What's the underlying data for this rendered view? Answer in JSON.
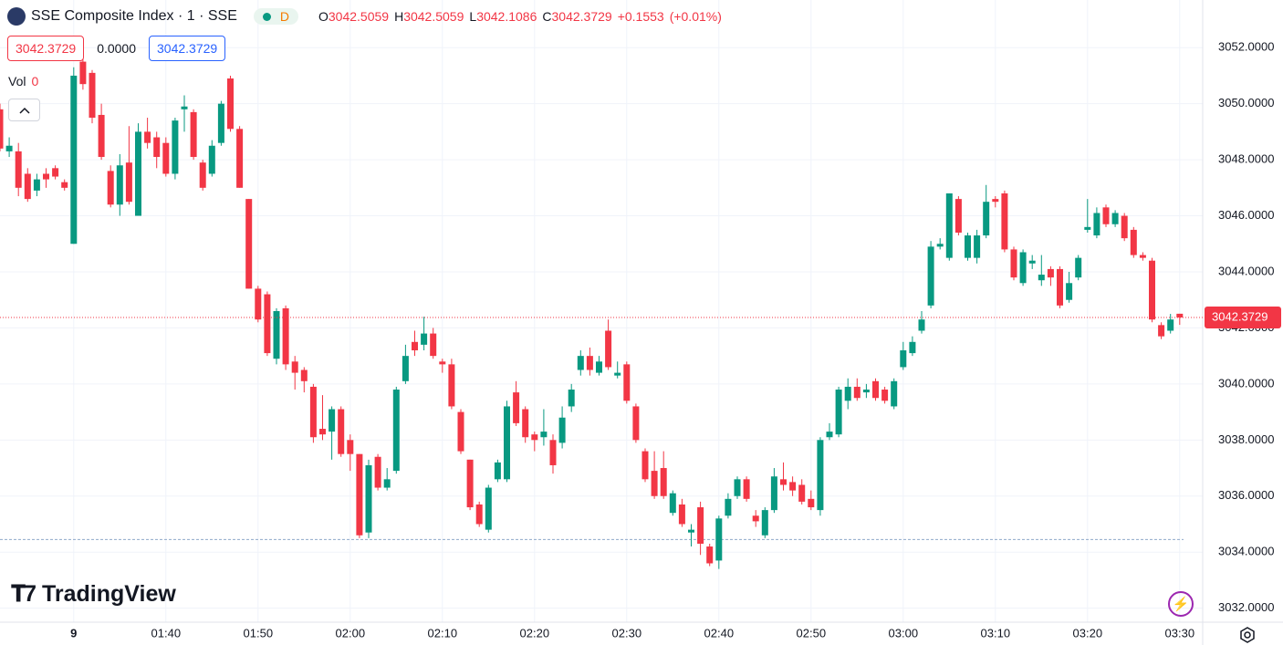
{
  "header": {
    "title": "SSE Composite Index · 1 · SSE",
    "interval_badge": "D",
    "ohlc": [
      {
        "label": "O",
        "value": "3042.5059"
      },
      {
        "label": "H",
        "value": "3042.5059"
      },
      {
        "label": "L",
        "value": "3042.1086"
      },
      {
        "label": "C",
        "value": "3042.3729"
      }
    ],
    "change": "+0.1553",
    "change_pct": "(+0.01%)",
    "bid": "3042.3729",
    "spread": "0.0000",
    "ask": "3042.3729",
    "vol_label": "Vol",
    "vol_value": "0"
  },
  "brand": "TradingView",
  "chart_data": {
    "type": "candlestick",
    "up_color": "#089981",
    "down_color": "#f23645",
    "grid": true,
    "x": [
      "01:22",
      "01:23",
      "01:24",
      "01:25",
      "01:26",
      "01:27",
      "01:28",
      "01:29",
      "01:30",
      "01:31",
      "01:32",
      "01:33",
      "01:34",
      "01:35",
      "01:36",
      "01:37",
      "01:38",
      "01:39",
      "01:40",
      "01:41",
      "01:42",
      "01:43",
      "01:44",
      "01:45",
      "01:46",
      "01:47",
      "01:48",
      "01:49",
      "01:50",
      "01:51",
      "01:52",
      "01:53",
      "01:54",
      "01:55",
      "01:56",
      "01:57",
      "01:58",
      "01:59",
      "02:00",
      "02:01",
      "02:02",
      "02:03",
      "02:04",
      "02:05",
      "02:06",
      "02:07",
      "02:08",
      "02:09",
      "02:10",
      "02:11",
      "02:12",
      "02:13",
      "02:14",
      "02:15",
      "02:16",
      "02:17",
      "02:18",
      "02:19",
      "02:20",
      "02:21",
      "02:22",
      "02:23",
      "02:24",
      "02:25",
      "02:26",
      "02:27",
      "02:28",
      "02:29",
      "02:30",
      "02:31",
      "02:32",
      "02:33",
      "02:34",
      "02:35",
      "02:36",
      "02:37",
      "02:38",
      "02:39",
      "02:40",
      "02:41",
      "02:42",
      "02:43",
      "02:44",
      "02:45",
      "02:46",
      "02:47",
      "02:48",
      "02:49",
      "02:50",
      "02:51",
      "02:52",
      "02:53",
      "02:54",
      "02:55",
      "02:56",
      "02:57",
      "02:58",
      "02:59",
      "03:00",
      "03:01",
      "03:02",
      "03:03",
      "03:04",
      "03:05",
      "03:06",
      "03:07",
      "03:08",
      "03:09",
      "03:10",
      "03:11",
      "03:12",
      "03:13",
      "03:14",
      "03:15",
      "03:16",
      "03:17",
      "03:18",
      "03:19",
      "03:20",
      "03:21",
      "03:22",
      "03:23",
      "03:24",
      "03:25",
      "03:26",
      "03:27",
      "03:28",
      "03:29",
      "03:30"
    ],
    "open": [
      3049.8,
      3048.3,
      3048.3,
      3047.5,
      3046.9,
      3047.5,
      3047.7,
      3047.2,
      3045.0,
      3051.5,
      3051.1,
      3049.6,
      3047.6,
      3046.4,
      3047.9,
      3046.0,
      3049.0,
      3048.8,
      3048.6,
      3047.5,
      3049.8,
      3049.7,
      3047.9,
      3047.5,
      3048.6,
      3050.9,
      3049.1,
      3046.6,
      3043.4,
      3043.2,
      3040.9,
      3042.7,
      3040.8,
      3040.5,
      3039.9,
      3038.4,
      3038.3,
      3039.1,
      3038.0,
      3037.5,
      3034.7,
      3037.4,
      3036.3,
      3036.9,
      3040.1,
      3041.5,
      3041.4,
      3041.8,
      3040.8,
      3040.7,
      3039.0,
      3037.3,
      3035.7,
      3034.8,
      3036.6,
      3036.6,
      3039.7,
      3039.1,
      3038.2,
      3038.1,
      3038.0,
      3037.9,
      3039.2,
      3040.5,
      3041.0,
      3040.4,
      3041.9,
      3040.3,
      3040.7,
      3039.2,
      3037.6,
      3036.9,
      3037.0,
      3035.4,
      3035.7,
      3034.7,
      3035.6,
      3034.2,
      3033.7,
      3035.3,
      3036.0,
      3036.6,
      3035.3,
      3034.6,
      3035.5,
      3036.6,
      3036.5,
      3036.4,
      3035.9,
      3035.5,
      3038.1,
      3038.2,
      3039.4,
      3039.9,
      3039.7,
      3040.1,
      3039.8,
      3039.2,
      3040.6,
      3041.1,
      3041.9,
      3042.8,
      3044.9,
      3044.5,
      3046.6,
      3044.5,
      3044.5,
      3045.3,
      3046.6,
      3046.8,
      3044.8,
      3043.6,
      3044.3,
      3043.7,
      3044.1,
      3044.1,
      3043.0,
      3043.8,
      3045.5,
      3045.3,
      3046.3,
      3045.7,
      3046.0,
      3045.5,
      3044.6,
      3044.4,
      3042.1,
      3041.9,
      3042.5059
    ],
    "high": [
      3050.0,
      3048.8,
      3048.6,
      3047.7,
      3047.5,
      3047.7,
      3047.8,
      3047.3,
      3051.3,
      3051.8,
      3051.2,
      3050.0,
      3047.8,
      3048.2,
      3049.2,
      3049.3,
      3049.5,
      3049.0,
      3048.8,
      3049.5,
      3050.3,
      3049.8,
      3048.0,
      3048.7,
      3050.1,
      3051.0,
      3049.2,
      3046.6,
      3043.5,
      3043.3,
      3042.7,
      3042.8,
      3041.0,
      3040.6,
      3040.0,
      3039.6,
      3039.2,
      3039.2,
      3038.2,
      3037.5,
      3037.3,
      3037.5,
      3037.0,
      3039.9,
      3041.4,
      3041.9,
      3042.4,
      3042.0,
      3040.9,
      3040.9,
      3039.1,
      3037.3,
      3035.8,
      3036.4,
      3037.3,
      3039.4,
      3040.1,
      3039.2,
      3038.3,
      3039.1,
      3038.2,
      3039.2,
      3040.0,
      3041.2,
      3041.3,
      3041.0,
      3042.3,
      3040.8,
      3040.8,
      3039.3,
      3037.7,
      3037.6,
      3037.6,
      3036.2,
      3035.9,
      3035.0,
      3035.8,
      3034.3,
      3035.3,
      3036.1,
      3036.7,
      3036.7,
      3035.5,
      3035.6,
      3037.0,
      3037.2,
      3036.7,
      3036.6,
      3036.2,
      3038.1,
      3038.6,
      3039.9,
      3040.2,
      3040.2,
      3040.0,
      3040.2,
      3039.9,
      3040.2,
      3041.5,
      3041.7,
      3042.6,
      3045.1,
      3045.2,
      3046.8,
      3046.7,
      3045.4,
      3045.5,
      3047.1,
      3046.7,
      3046.9,
      3044.9,
      3044.8,
      3044.6,
      3044.6,
      3044.2,
      3044.2,
      3044.0,
      3044.6,
      3046.6,
      3046.3,
      3046.4,
      3046.2,
      3046.1,
      3045.6,
      3044.7,
      3044.5,
      3042.2,
      3042.5,
      3042.5059
    ],
    "low": [
      3048.3,
      3048.1,
      3046.7,
      3046.5,
      3046.7,
      3047.0,
      3047.3,
      3046.9,
      3045.0,
      3050.5,
      3049.3,
      3048.0,
      3046.3,
      3046.0,
      3046.4,
      3046.0,
      3048.4,
      3047.7,
      3047.4,
      3047.3,
      3049.0,
      3048.0,
      3046.9,
      3047.4,
      3048.5,
      3049.0,
      3047.0,
      3043.4,
      3042.2,
      3041.0,
      3040.7,
      3040.5,
      3039.8,
      3039.7,
      3037.9,
      3038.0,
      3037.3,
      3037.4,
      3036.9,
      3034.5,
      3034.5,
      3036.2,
      3036.2,
      3036.8,
      3040.0,
      3041.0,
      3041.2,
      3040.9,
      3040.4,
      3039.1,
      3037.5,
      3035.5,
      3034.9,
      3034.7,
      3036.5,
      3036.5,
      3038.5,
      3037.9,
      3037.6,
      3037.8,
      3036.8,
      3037.7,
      3039.0,
      3040.3,
      3040.3,
      3040.3,
      3040.5,
      3040.2,
      3039.3,
      3037.9,
      3036.5,
      3035.9,
      3035.9,
      3035.3,
      3034.9,
      3034.2,
      3033.9,
      3033.5,
      3033.4,
      3035.2,
      3035.9,
      3035.8,
      3034.9,
      3034.5,
      3035.4,
      3036.2,
      3036.0,
      3035.7,
      3035.5,
      3035.3,
      3038.0,
      3038.1,
      3039.1,
      3039.4,
      3039.5,
      3039.4,
      3039.3,
      3039.1,
      3040.5,
      3041.0,
      3041.8,
      3042.7,
      3044.8,
      3044.4,
      3045.3,
      3044.4,
      3044.3,
      3045.2,
      3046.3,
      3044.7,
      3043.7,
      3043.5,
      3044.1,
      3043.5,
      3043.5,
      3042.7,
      3042.9,
      3043.7,
      3045.4,
      3045.2,
      3045.6,
      3045.6,
      3045.1,
      3044.5,
      3044.4,
      3042.2,
      3041.6,
      3041.8,
      3042.1086
    ],
    "close": [
      3048.4,
      3048.5,
      3047.0,
      3046.6,
      3047.3,
      3047.3,
      3047.4,
      3047.0,
      3051.0,
      3050.7,
      3049.5,
      3048.1,
      3046.4,
      3047.8,
      3046.5,
      3049.0,
      3048.6,
      3048.1,
      3047.5,
      3049.4,
      3049.9,
      3048.1,
      3047.0,
      3048.5,
      3050.0,
      3049.1,
      3047.0,
      3043.4,
      3042.3,
      3041.1,
      3042.6,
      3040.7,
      3040.4,
      3040.1,
      3038.1,
      3038.2,
      3039.1,
      3037.5,
      3037.5,
      3034.6,
      3037.1,
      3036.3,
      3036.6,
      3039.8,
      3041.0,
      3041.2,
      3041.8,
      3041.0,
      3040.7,
      3039.2,
      3037.6,
      3035.6,
      3035.0,
      3036.3,
      3037.2,
      3039.2,
      3038.6,
      3038.1,
      3038.0,
      3038.3,
      3037.1,
      3038.8,
      3039.8,
      3041.0,
      3040.5,
      3040.8,
      3040.6,
      3040.4,
      3039.4,
      3038.0,
      3036.6,
      3036.0,
      3036.0,
      3036.1,
      3035.0,
      3034.8,
      3034.3,
      3033.6,
      3035.2,
      3035.9,
      3036.6,
      3035.9,
      3035.1,
      3035.5,
      3036.7,
      3036.4,
      3036.2,
      3035.8,
      3035.6,
      3038.0,
      3038.3,
      3039.8,
      3039.9,
      3039.5,
      3039.8,
      3039.5,
      3039.4,
      3040.1,
      3041.2,
      3041.5,
      3042.3,
      3044.9,
      3045.0,
      3046.8,
      3045.4,
      3045.3,
      3045.3,
      3046.5,
      3046.5,
      3044.8,
      3043.8,
      3044.7,
      3044.4,
      3043.9,
      3043.8,
      3042.8,
      3043.6,
      3044.5,
      3045.6,
      3046.1,
      3045.7,
      3046.1,
      3045.2,
      3044.6,
      3044.5,
      3042.3,
      3041.7,
      3042.3,
      3042.3729
    ],
    "ylim": [
      3031.5,
      3053.7
    ],
    "yticks": [
      {
        "value": 3032,
        "label": "3032.0000"
      },
      {
        "value": 3034,
        "label": "3034.0000"
      },
      {
        "value": 3036,
        "label": "3036.0000"
      },
      {
        "value": 3038,
        "label": "3038.0000"
      },
      {
        "value": 3040,
        "label": "3040.0000"
      },
      {
        "value": 3042,
        "label": "3042.0000"
      },
      {
        "value": 3044,
        "label": "3044.0000"
      },
      {
        "value": 3046,
        "label": "3046.0000"
      },
      {
        "value": 3048,
        "label": "3048.0000"
      },
      {
        "value": 3050,
        "label": "3050.0000"
      },
      {
        "value": 3052,
        "label": "3052.0000"
      }
    ],
    "xticks": [
      {
        "value": "01:30",
        "label": "9"
      },
      "01:40",
      "01:50",
      "02:00",
      "02:10",
      "02:20",
      "02:30",
      "02:40",
      "02:50",
      "03:00",
      "03:10",
      "03:20",
      "03:30"
    ],
    "last_price": {
      "value": 3042.3729,
      "label": "3042.3729"
    },
    "reference_line": 3034.45
  }
}
